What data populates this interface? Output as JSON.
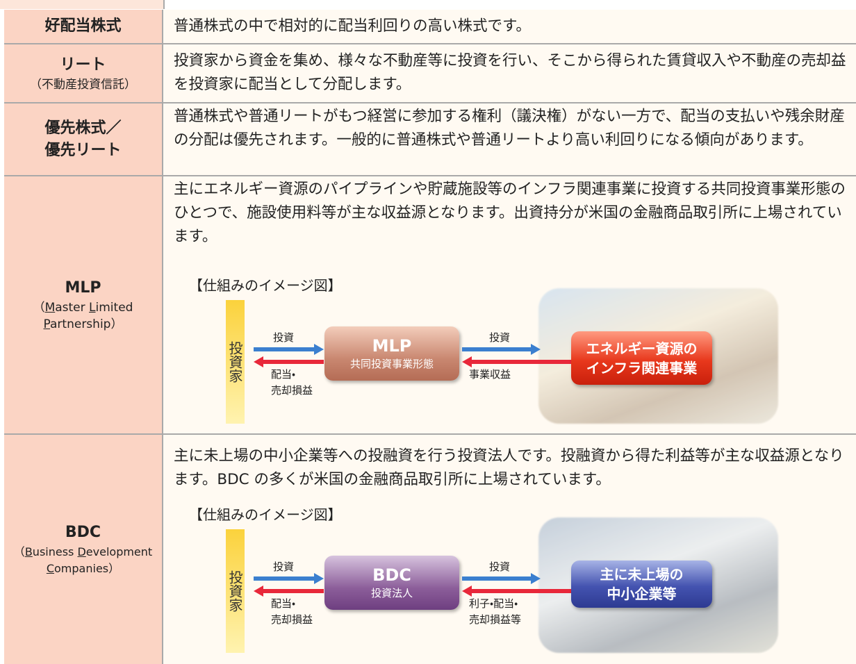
{
  "rows": [
    {
      "term": [
        "好配当株式"
      ],
      "description": "普通株式の中で相対的に配当利回りの高い株式です。"
    },
    {
      "term": [
        "リート"
      ],
      "note": [
        "（不動産投資信託）"
      ],
      "description": "投資家から資金を集め、様々な不動産等に投資を行い、そこから得られた賃貸収入や不動産の売却益を投資家に配当として分配します。"
    },
    {
      "term": [
        "優先株式／",
        "優先リート"
      ],
      "description": "普通株式や普通リートがもつ経営に参加する権利（議決権）がない一方で、配当の支払いや残余財産の分配は優先されます。一般的に普通株式や普通リートより高い利回りになる傾向があります。"
    },
    {
      "term": [
        "MLP"
      ],
      "note": [
        "（",
        "M",
        "aster ",
        "L",
        "imited",
        "P",
        "artnership）"
      ],
      "description": "主にエネルギー資源のパイプラインや貯蔵施設等のインフラ関連事業に投資する共同投資事業形態のひとつで、施設使用料等が主な収益源となります。出資持分が米国の金融商品取引所に上場されています。",
      "diagram": {
        "title": "【仕組みのイメージ図】",
        "investor": "投資家",
        "left_out": "投資",
        "left_back": [
          "配当・",
          "売却損益"
        ],
        "center_title": "MLP",
        "center_sub": "共同投資事業形態",
        "right_out": "投資",
        "right_back": [
          "事業収益"
        ],
        "target": [
          "エネルギー資源の",
          "インフラ関連事業"
        ]
      }
    },
    {
      "term": [
        "BDC"
      ],
      "note": [
        "（",
        "B",
        "usiness ",
        "D",
        "evelopment",
        "C",
        "ompanies）"
      ],
      "description": "主に未上場の中小企業等への投融資を行う投資法人です。投融資から得た利益等が主な収益源となります。BDC の多くが米国の金融商品取引所に上場されています。",
      "diagram": {
        "title": "【仕組みのイメージ図】",
        "investor": "投資家",
        "left_out": "投資",
        "left_back": [
          "配当・",
          "売却損益"
        ],
        "center_title": "BDC",
        "center_sub": "投資法人",
        "right_out": "投資",
        "right_back": [
          "利子・配当・",
          "売却損益等"
        ],
        "target": [
          "主に未上場の",
          "中小企業等"
        ]
      }
    }
  ]
}
